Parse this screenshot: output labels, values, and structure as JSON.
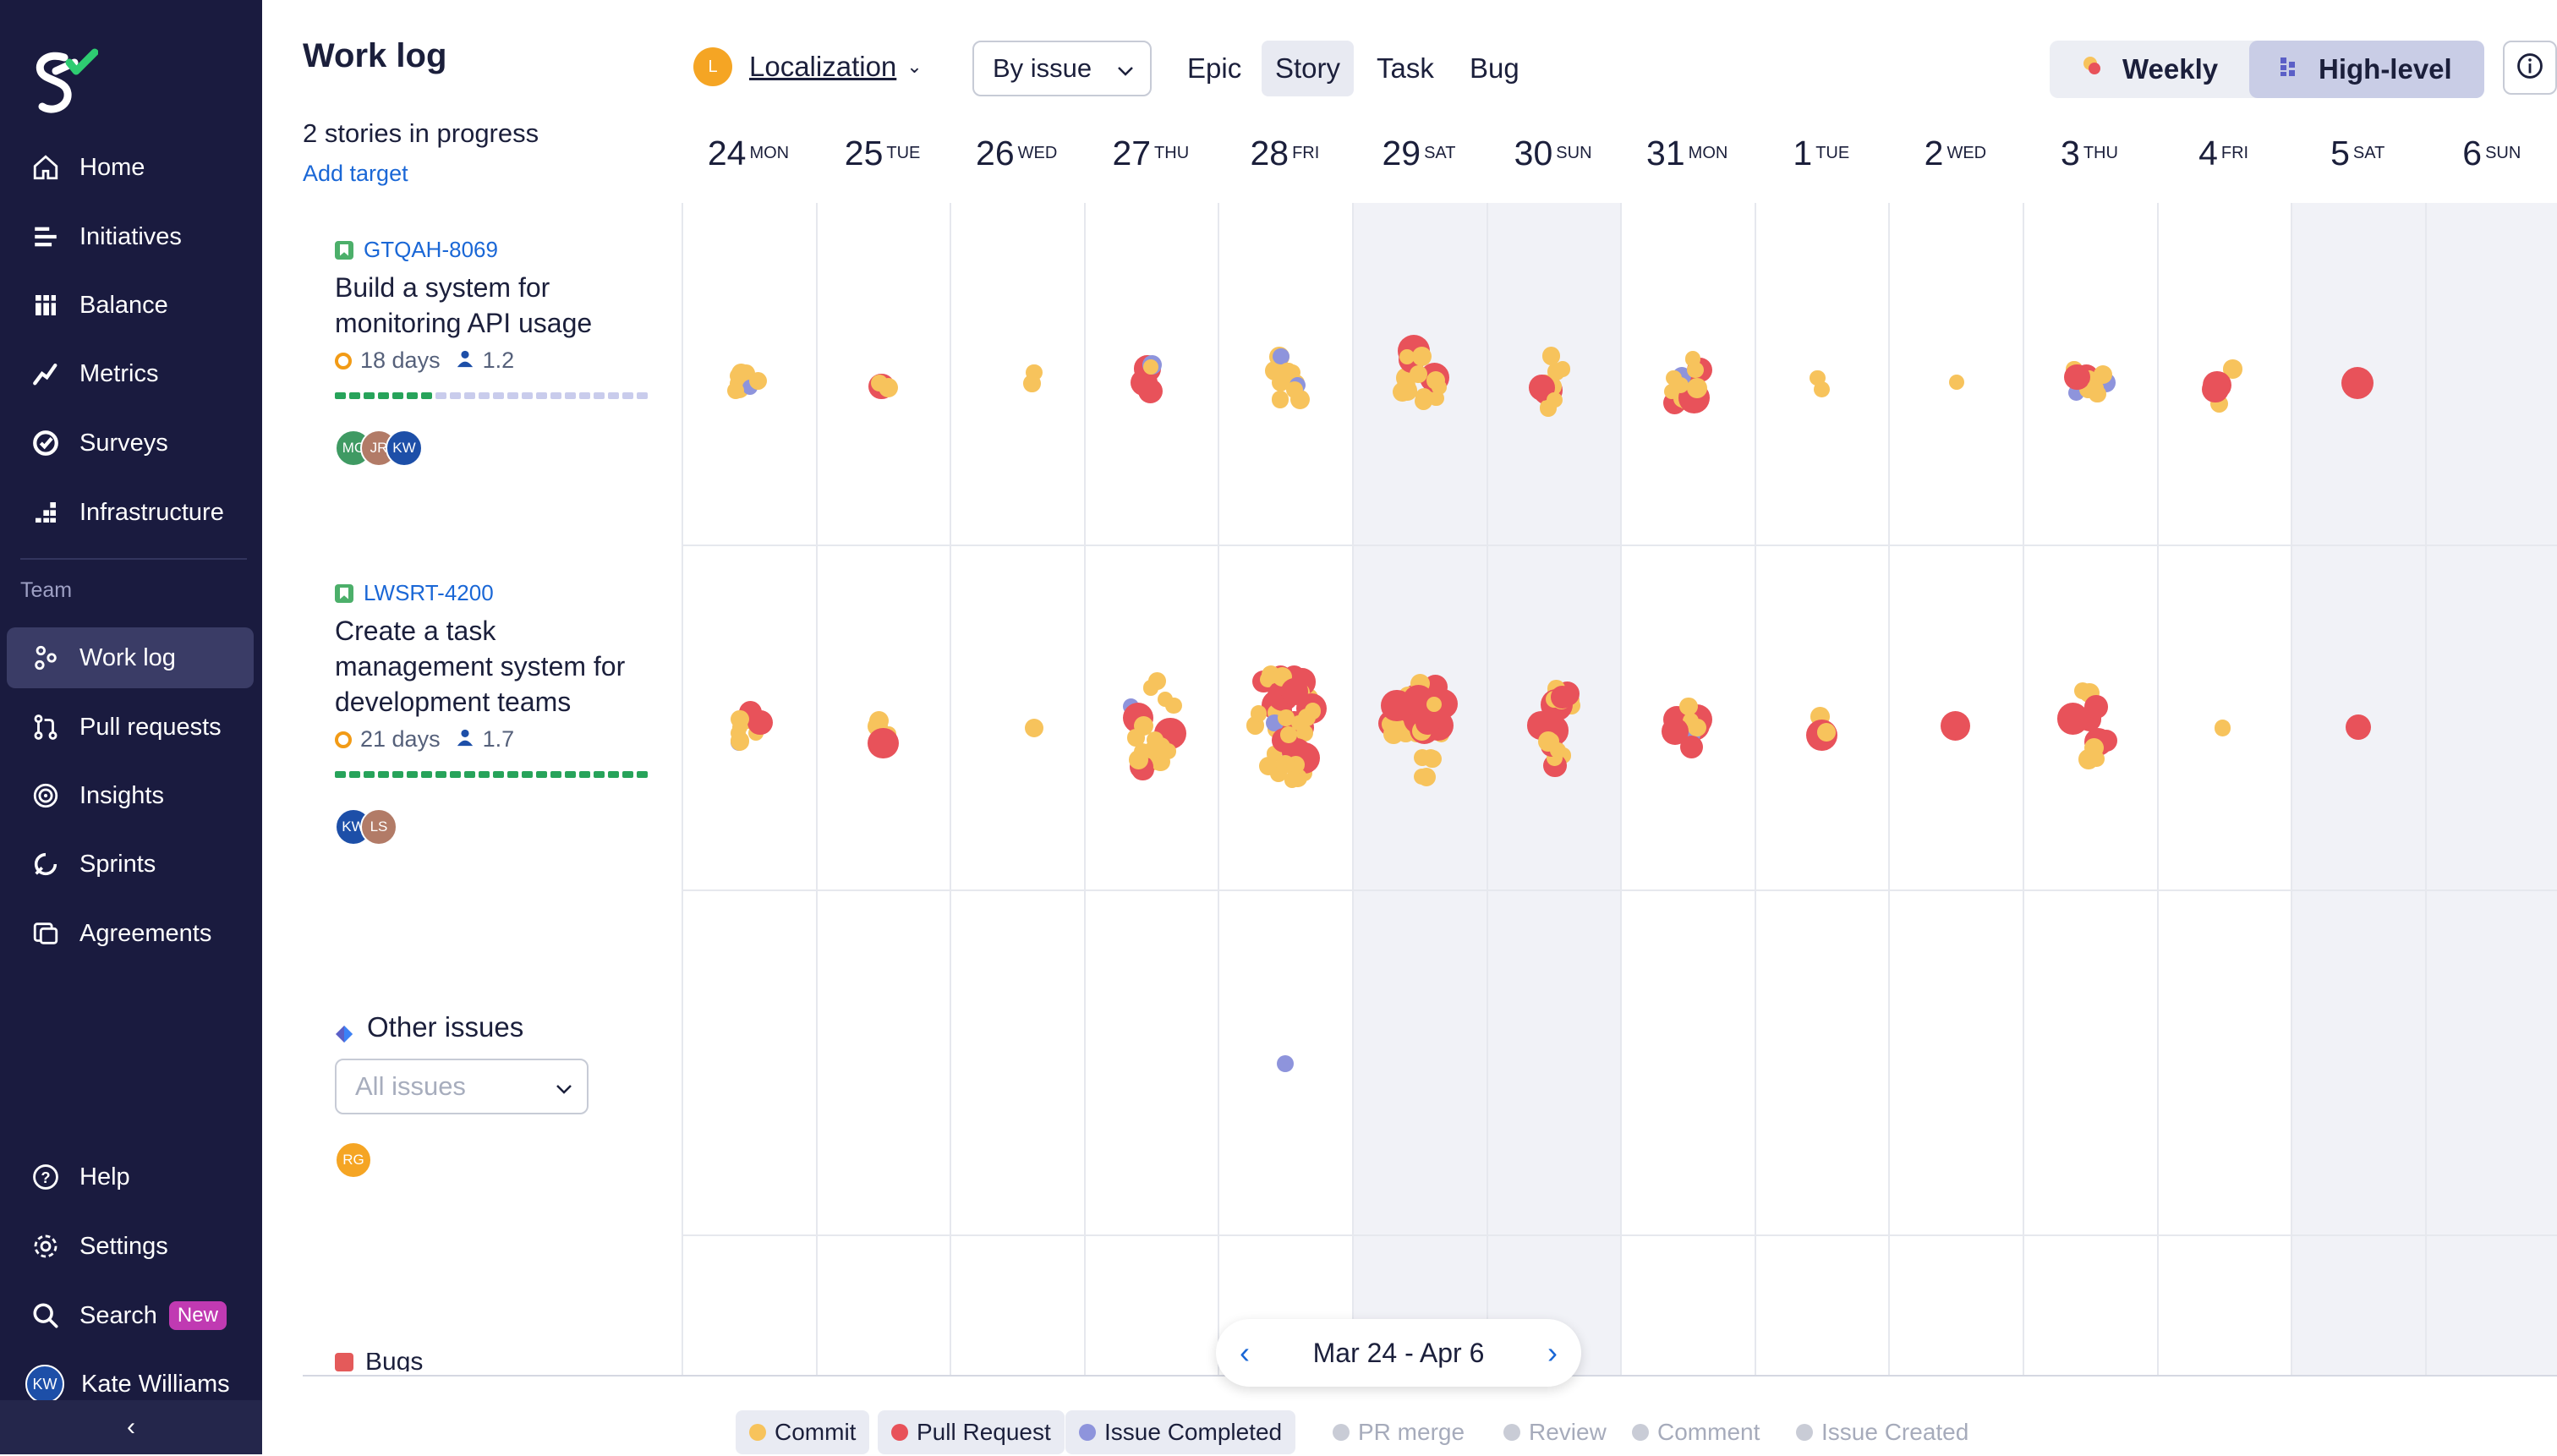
{
  "sidebar": {
    "nav": [
      {
        "label": "Home",
        "icon": "home-icon"
      },
      {
        "label": "Initiatives",
        "icon": "initiatives-icon"
      },
      {
        "label": "Balance",
        "icon": "balance-icon"
      },
      {
        "label": "Metrics",
        "icon": "metrics-icon"
      },
      {
        "label": "Surveys",
        "icon": "surveys-icon"
      },
      {
        "label": "Infrastructure",
        "icon": "infrastructure-icon"
      }
    ],
    "team_label": "Team",
    "team_nav": [
      {
        "label": "Work log",
        "icon": "work-log-icon",
        "active": true
      },
      {
        "label": "Pull requests",
        "icon": "pull-requests-icon"
      },
      {
        "label": "Insights",
        "icon": "insights-icon"
      },
      {
        "label": "Sprints",
        "icon": "sprints-icon"
      },
      {
        "label": "Agreements",
        "icon": "agreements-icon"
      }
    ],
    "bottom": {
      "help": "Help",
      "settings": "Settings",
      "search": "Search",
      "search_badge": "New",
      "user_name": "Kate Williams",
      "user_initials": "KW"
    }
  },
  "header": {
    "title": "Work log",
    "stories_in_progress": "2 stories in progress",
    "add_target": "Add target",
    "project_initial": "L",
    "project_name": "Localization",
    "group_by": "By issue",
    "issue_types": [
      "Epic",
      "Story",
      "Task",
      "Bug"
    ],
    "selected_type": "Story",
    "view_weekly": "Weekly",
    "view_high_level": "High-level",
    "selected_view": "High-level"
  },
  "days": [
    {
      "num": "24",
      "wd": "MON"
    },
    {
      "num": "25",
      "wd": "TUE"
    },
    {
      "num": "26",
      "wd": "WED"
    },
    {
      "num": "27",
      "wd": "THU"
    },
    {
      "num": "28",
      "wd": "FRI"
    },
    {
      "num": "29",
      "wd": "SAT"
    },
    {
      "num": "30",
      "wd": "SUN"
    },
    {
      "num": "31",
      "wd": "MON"
    },
    {
      "num": "1",
      "wd": "TUE"
    },
    {
      "num": "2",
      "wd": "WED"
    },
    {
      "num": "3",
      "wd": "THU"
    },
    {
      "num": "4",
      "wd": "FRI"
    },
    {
      "num": "5",
      "wd": "SAT"
    },
    {
      "num": "6",
      "wd": "SUN"
    }
  ],
  "issues": [
    {
      "key": "GTQAH-8069",
      "title": "Build a system for monitoring API usage",
      "days": "18 days",
      "people": "1.2",
      "progress_filled": 0.34,
      "avatars": [
        {
          "initials": "MC",
          "color": "#3f9a63"
        },
        {
          "initials": "JR",
          "color": "#b27b67"
        },
        {
          "initials": "KW",
          "color": "#1d4fa8"
        }
      ]
    },
    {
      "key": "LWSRT-4200",
      "title": "Create a task management system for development teams",
      "days": "21 days",
      "people": "1.7",
      "progress_filled": 1.0,
      "avatars": [
        {
          "initials": "KW",
          "color": "#1d4fa8"
        },
        {
          "initials": "LS",
          "color": "#b27b67"
        }
      ]
    }
  ],
  "other_issues": {
    "label": "Other issues",
    "filter_placeholder": "All issues",
    "avatar": {
      "initials": "RG",
      "color": "#f5a524"
    }
  },
  "bugs_label": "Bugs",
  "date_range": "Mar 24 - Apr 6",
  "legend": [
    {
      "label": "Commit",
      "color": "#f7c35c",
      "on": true
    },
    {
      "label": "Pull Request",
      "color": "#e8525a",
      "on": true
    },
    {
      "label": "Issue Completed",
      "color": "#8e94dc",
      "on": true
    },
    {
      "label": "PR merge",
      "color": "#c9ccd6",
      "on": false
    },
    {
      "label": "Review",
      "color": "#c9ccd6",
      "on": false
    },
    {
      "label": "Comment",
      "color": "#c9ccd6",
      "on": false
    },
    {
      "label": "Issue Created",
      "color": "#c9ccd6",
      "on": false
    }
  ],
  "colors": {
    "sidebar_bg": "#1a1b3f",
    "commit": "#f7c35c",
    "pull_request": "#e8525a",
    "issue_completed": "#8e94dc",
    "link": "#1a67d6"
  }
}
